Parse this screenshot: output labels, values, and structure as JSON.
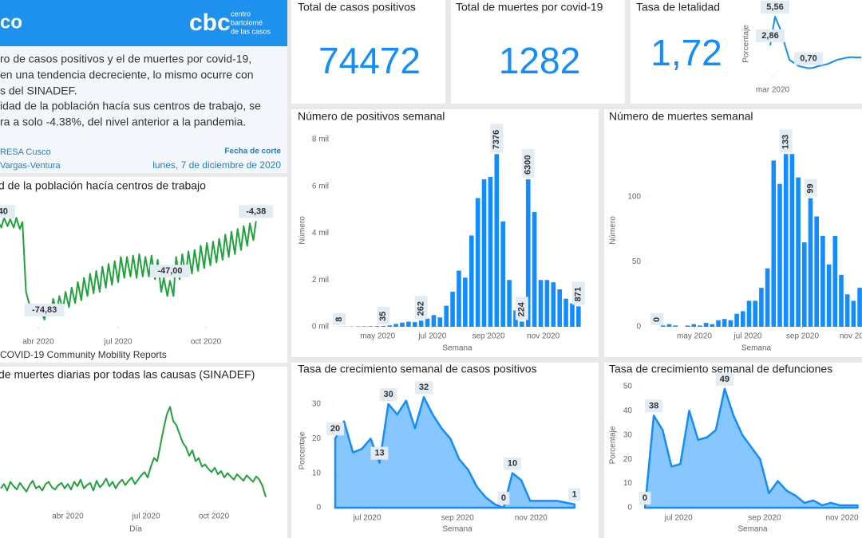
{
  "header": {
    "title": "co",
    "logo": "cbc",
    "logo_lines": [
      "centro",
      "bartolomé",
      "de las casos"
    ]
  },
  "summary": {
    "lines": [
      "ro de casos positivos y el de muertes por covid-19,",
      "en una tendencia decreciente, lo mismo ocurre con",
      "s del SINADEF.",
      "idad de la población hacía sus centros de trabajo, se",
      "ra a solo -4.38%, del nivel anterior a la pandemia."
    ],
    "source_lines": [
      "RESA Cusco",
      "Vargas-Ventura"
    ],
    "date_label": "Fecha de corte",
    "date": "lunes, 7 de diciembre de 2020"
  },
  "cards": [
    {
      "title": "Total de casos positivos",
      "value": "74472"
    },
    {
      "title": "Total de muertes por covid-19",
      "value": "1282"
    },
    {
      "title": "Tasa de letalidad",
      "value": "1,72"
    }
  ],
  "chart_data": [
    {
      "type": "line",
      "y_label": "Porcentaje",
      "color": "#118dff",
      "values": [
        2.86,
        5.56,
        4.5,
        3.0,
        1.5,
        1.2,
        0.9,
        0.8,
        0.7,
        0.75,
        0.9,
        1.0,
        1.1,
        1.3,
        1.5,
        1.6,
        1.7,
        1.75,
        1.72,
        1.72
      ],
      "value_labels": [
        "2,86",
        "5,56",
        null,
        null,
        null,
        null,
        null,
        null,
        "0,70",
        null,
        null,
        null,
        null,
        null,
        null,
        null,
        null,
        null,
        null,
        null
      ],
      "xlim": [
        0,
        19
      ],
      "ylim": [
        0,
        6
      ],
      "xticks": [
        {
          "value": 0.5,
          "label": "mar 2020"
        }
      ]
    },
    {
      "type": "bar",
      "title": "Número de positivos semanal",
      "x_label": "Semana",
      "y_label": "Número",
      "color": "#118dff",
      "x": [
        12,
        13,
        14,
        15,
        16,
        17,
        18,
        19,
        20,
        21,
        22,
        23,
        24,
        25,
        26,
        27,
        28,
        29,
        30,
        31,
        32,
        33,
        34,
        35,
        36,
        37,
        38,
        39,
        40,
        41,
        42,
        43,
        44,
        45,
        46,
        47,
        48,
        49,
        50
      ],
      "values": [
        8,
        10,
        12,
        18,
        20,
        22,
        30,
        35,
        60,
        120,
        180,
        220,
        200,
        262,
        350,
        500,
        400,
        900,
        1500,
        2400,
        2100,
        3900,
        5500,
        6300,
        6400,
        7376,
        4500,
        2000,
        700,
        224,
        6300,
        4900,
        2000,
        2000,
        1900,
        1600,
        1200,
        1000,
        871
      ],
      "value_labels": [
        "8",
        null,
        null,
        null,
        null,
        null,
        null,
        "35",
        null,
        null,
        null,
        null,
        null,
        "262",
        null,
        null,
        null,
        null,
        null,
        null,
        null,
        null,
        null,
        null,
        null,
        "7376",
        null,
        null,
        null,
        "224",
        "6300",
        null,
        null,
        null,
        null,
        null,
        null,
        null,
        "871"
      ],
      "xlim": [
        11.1,
        50.4
      ],
      "ylim": [
        0,
        8240
      ],
      "xticks": [
        {
          "value": 18.1,
          "label": "may 2020"
        },
        {
          "value": 26.8,
          "label": "jul 2020"
        },
        {
          "value": 35.7,
          "label": "sep 2020"
        },
        {
          "value": 44.4,
          "label": "nov 2020"
        }
      ],
      "yticks": [
        {
          "value": 0,
          "label": "0 mil"
        },
        {
          "value": 2000,
          "label": "2 mil"
        },
        {
          "value": 4000,
          "label": "4 mil"
        },
        {
          "value": 6000,
          "label": "6 mil"
        },
        {
          "value": 8000,
          "label": "8 mil"
        }
      ]
    },
    {
      "type": "bar",
      "title": "Número de muertes semanal",
      "x_label": "Semana",
      "y_label": "Número",
      "color": "#118dff",
      "x": [
        12,
        13,
        14,
        15,
        16,
        17,
        18,
        19,
        20,
        21,
        22,
        23,
        24,
        25,
        26,
        27,
        28,
        29,
        30,
        31,
        32,
        33,
        34,
        35,
        36,
        37,
        38,
        39,
        40,
        41,
        42,
        43,
        44,
        45
      ],
      "values": [
        0,
        1,
        2,
        1,
        0,
        1,
        2,
        1,
        3,
        2,
        5,
        6,
        5,
        10,
        12,
        20,
        20,
        30,
        45,
        128,
        110,
        133,
        133,
        115,
        65,
        99,
        85,
        70,
        48,
        70,
        40,
        25,
        20,
        30
      ],
      "value_labels": [
        "0",
        null,
        null,
        null,
        null,
        null,
        null,
        null,
        null,
        null,
        null,
        null,
        null,
        null,
        null,
        null,
        null,
        null,
        null,
        null,
        null,
        "133",
        null,
        null,
        null,
        "99",
        null,
        null,
        null,
        null,
        null,
        null,
        null,
        null
      ],
      "xlim": [
        10.96,
        45.38
      ],
      "ylim": [
        0,
        148.5
      ],
      "xticks": [
        {
          "value": 18.1,
          "label": "may 2020"
        },
        {
          "value": 26.8,
          "label": "jul 2020"
        },
        {
          "value": 35.7,
          "label": "sep 2020"
        },
        {
          "value": 44.4,
          "label": "nov 2020"
        }
      ],
      "yticks": [
        0,
        50,
        100
      ]
    },
    {
      "type": "line",
      "title": "d de la población hacía centros de trabajo",
      "source": "COVID-19 Community Mobility Reports",
      "color": "#1fa33b",
      "x": [
        46,
        50,
        53,
        57,
        60,
        64,
        67,
        71,
        74,
        78,
        81,
        85,
        88,
        92,
        95,
        99,
        102,
        106,
        109,
        113,
        116,
        120,
        123,
        127,
        130,
        134,
        137,
        141,
        144,
        148,
        151,
        155,
        158,
        162,
        165,
        169,
        172,
        176,
        179,
        183,
        186,
        190,
        193,
        197,
        200,
        204,
        207,
        211,
        214,
        218,
        221,
        225,
        228,
        232,
        235,
        239,
        242,
        246,
        249,
        253,
        256,
        260,
        263,
        267,
        270,
        274,
        277,
        281,
        284,
        288,
        291,
        295,
        298,
        302,
        305,
        309,
        312,
        316,
        319,
        323,
        326,
        330,
        333,
        337,
        340
      ],
      "values": [
        -4.4,
        -9,
        -2,
        -8,
        -3,
        -9,
        -2,
        -10,
        -5,
        -55,
        -62,
        -70,
        -66,
        -72,
        -68,
        -74.83,
        -65,
        -72,
        -60,
        -70,
        -58,
        -68,
        -55,
        -66,
        -52,
        -63,
        -48,
        -61,
        -45,
        -58,
        -42,
        -56,
        -40,
        -55,
        -37,
        -52,
        -35,
        -50,
        -33,
        -48,
        -30,
        -45,
        -30,
        -44,
        -29,
        -45,
        -28,
        -44,
        -30,
        -44,
        -29,
        -46,
        -32,
        -55,
        -45,
        -58,
        -47,
        -58,
        -30,
        -46,
        -28,
        -44,
        -26,
        -42,
        -25,
        -40,
        -22,
        -38,
        -20,
        -36,
        -19,
        -34,
        -17,
        -32,
        -14,
        -30,
        -12,
        -28,
        -10,
        -25,
        -8,
        -22,
        -6,
        -18,
        -4.38
      ],
      "value_labels": [
        "-4,40",
        null,
        null,
        null,
        null,
        null,
        null,
        null,
        null,
        null,
        null,
        null,
        null,
        null,
        null,
        "-74,83",
        null,
        null,
        null,
        null,
        null,
        null,
        null,
        null,
        null,
        null,
        null,
        null,
        null,
        null,
        null,
        null,
        null,
        null,
        null,
        null,
        null,
        null,
        null,
        null,
        null,
        null,
        null,
        null,
        null,
        null,
        null,
        null,
        null,
        null,
        null,
        null,
        null,
        null,
        null,
        null,
        "-47,00",
        null,
        null,
        null,
        null,
        null,
        null,
        null,
        null,
        null,
        null,
        null,
        null,
        null,
        null,
        null,
        null,
        null,
        null,
        null,
        null,
        null,
        null,
        null,
        null,
        null,
        null,
        null,
        "-4,38"
      ],
      "xlim": [
        48.4,
        357.5
      ],
      "ylim": [
        -80,
        5
      ],
      "xticks": [
        {
          "value": 92,
          "label": "abr 2020"
        },
        {
          "value": 183,
          "label": "jul 2020"
        },
        {
          "value": 283,
          "label": "oct 2020"
        }
      ]
    },
    {
      "type": "line",
      "title": "de muertes diarias por todas las causas (SINADEF)",
      "x_label": "Día",
      "color": "#1fa33b",
      "x": [
        8,
        12,
        16,
        20,
        24,
        28,
        32,
        36,
        40,
        44,
        48,
        52,
        56,
        60,
        64,
        68,
        72,
        76,
        80,
        84,
        88,
        92,
        96,
        100,
        104,
        108,
        112,
        116,
        120,
        124,
        128,
        132,
        136,
        140,
        144,
        148,
        152,
        156,
        160,
        164,
        168,
        172,
        176,
        180,
        184,
        188,
        192,
        196,
        200,
        204,
        208,
        212,
        216,
        220,
        224,
        228,
        232,
        236,
        240,
        244,
        248,
        252,
        256,
        260,
        264,
        268,
        272,
        276,
        280,
        284,
        288,
        292,
        296,
        300,
        304,
        308,
        312,
        316,
        320,
        324,
        328,
        332,
        336,
        340
      ],
      "values": [
        20,
        24,
        18,
        26,
        22,
        19,
        25,
        21,
        17,
        23,
        27,
        20,
        22,
        18,
        24,
        26,
        21,
        19,
        23,
        25,
        20,
        24,
        19,
        26,
        22,
        28,
        20,
        23,
        25,
        18,
        27,
        21,
        24,
        29,
        22,
        26,
        20,
        25,
        28,
        23,
        27,
        30,
        24,
        28,
        32,
        35,
        30,
        40,
        48,
        45,
        60,
        75,
        88,
        95,
        82,
        78,
        70,
        62,
        58,
        50,
        55,
        45,
        48,
        40,
        42,
        38,
        35,
        39,
        33,
        36,
        30,
        34,
        31,
        28,
        33,
        30,
        27,
        32,
        29,
        26,
        31,
        28,
        22,
        12
      ],
      "xlim": [
        7,
        347
      ],
      "ylim": [
        0,
        110
      ],
      "xticks": [
        {
          "value": 92,
          "label": "abr 2020"
        },
        {
          "value": 190,
          "label": "jul 2020"
        },
        {
          "value": 275,
          "label": "oct 2020"
        }
      ]
    },
    {
      "type": "area",
      "title": "Tasa de crecimiento semanal de casos positivos",
      "x_label": "Semana",
      "y_label": "Porcentaje",
      "color": "#118dff",
      "x": [
        24,
        25,
        26,
        27,
        28,
        29,
        30,
        31,
        32,
        33,
        34,
        35,
        36,
        37,
        38,
        39,
        40,
        41,
        42,
        43,
        44,
        45,
        46,
        47,
        48,
        49,
        50,
        51
      ],
      "values": [
        20,
        25,
        16,
        17,
        20,
        13,
        30,
        27,
        31,
        23,
        32,
        27,
        23,
        20,
        14,
        11,
        6,
        3,
        1,
        0,
        10,
        8,
        2,
        2,
        2,
        2,
        1.5,
        1
      ],
      "value_labels": [
        "20",
        null,
        null,
        null,
        null,
        "13",
        "30",
        null,
        null,
        null,
        "32",
        null,
        null,
        null,
        null,
        null,
        null,
        null,
        null,
        "0",
        "10",
        null,
        null,
        null,
        null,
        null,
        null,
        "1"
      ],
      "xlim": [
        23.82,
        51.75
      ],
      "ylim": [
        0,
        33
      ],
      "xticks": [
        {
          "value": 27.6,
          "label": "jul 2020"
        },
        {
          "value": 37.8,
          "label": "sep 2020"
        },
        {
          "value": 46.1,
          "label": "nov 2020"
        }
      ],
      "yticks": [
        0,
        10,
        20,
        30
      ]
    },
    {
      "type": "area",
      "title": "Tasa de crecimiento semanal de defunciones",
      "x_label": "Semana",
      "y_label": "Porcentaje",
      "color": "#118dff",
      "x": [
        24,
        25,
        26,
        27,
        28,
        29,
        30,
        31,
        32,
        33,
        34,
        35,
        36,
        37,
        38,
        39,
        40,
        41,
        42,
        43,
        44,
        45,
        46,
        47,
        48
      ],
      "values": [
        0,
        38,
        32,
        17,
        18,
        40,
        28,
        29,
        32,
        49,
        38,
        30,
        25,
        20,
        6,
        11,
        7,
        5,
        2,
        3,
        1,
        2,
        1,
        1,
        1
      ],
      "value_labels": [
        "0",
        "38",
        null,
        null,
        null,
        null,
        null,
        null,
        null,
        "49",
        null,
        null,
        null,
        null,
        null,
        null,
        null,
        null,
        null,
        null,
        null,
        null,
        null,
        null,
        null
      ],
      "xlim": [
        23.82,
        48.5
      ],
      "ylim": [
        0,
        51.6
      ],
      "xticks": [
        {
          "value": 27.8,
          "label": "jul 2020"
        },
        {
          "value": 37.5,
          "label": "sep 2020"
        },
        {
          "value": 46.25,
          "label": "nov 2020"
        }
      ],
      "yticks": [
        0,
        10,
        20,
        30,
        40,
        50
      ]
    }
  ]
}
